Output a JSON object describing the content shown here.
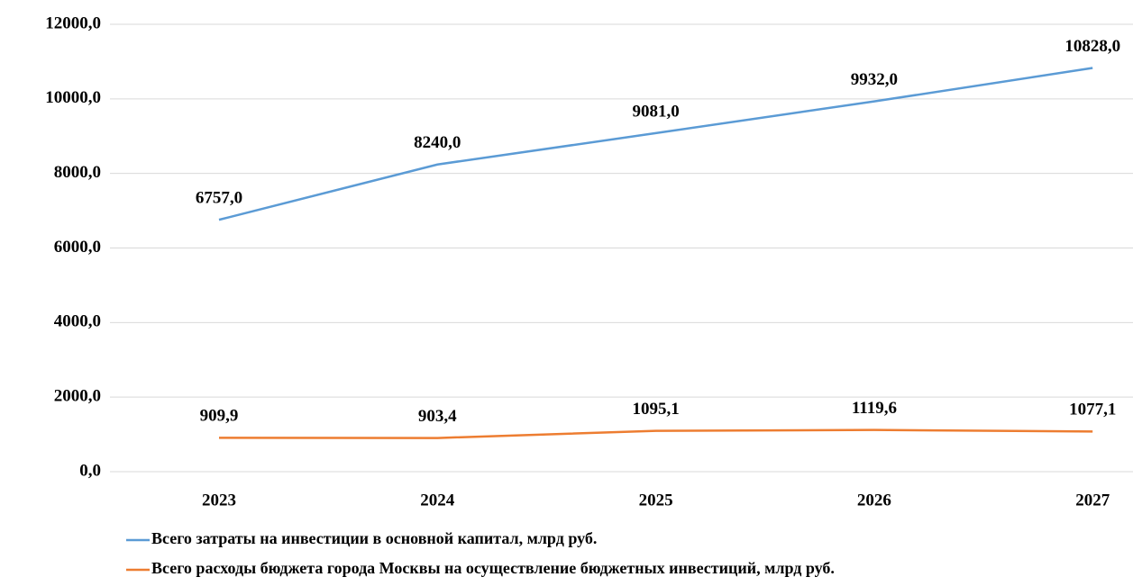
{
  "chart_data": {
    "type": "line",
    "categories": [
      "2023",
      "2024",
      "2025",
      "2026",
      "2027"
    ],
    "series": [
      {
        "name": "Всего затраты на инвестиции в основной капитал, млрд руб.",
        "color": "#5b9bd5",
        "values": [
          6757,
          8240,
          9081,
          9932,
          10828
        ],
        "value_labels": [
          "6757,0",
          "8240,0",
          "9081,0",
          "9932,0",
          "10828,0"
        ]
      },
      {
        "name": "Всего расходы бюджета города Москвы на осуществление бюджетных инвестиций, млрд руб.",
        "color": "#ed7d31",
        "values": [
          909.9,
          903.4,
          1095.1,
          1119.6,
          1077.1
        ],
        "value_labels": [
          "909,9",
          "903,4",
          "1095,1",
          "1119,6",
          "1077,1"
        ]
      }
    ],
    "ylim": [
      0,
      12000
    ],
    "yticks": [
      {
        "value": 0,
        "label": "0,0"
      },
      {
        "value": 2000,
        "label": "2000,0"
      },
      {
        "value": 4000,
        "label": "4000,0"
      },
      {
        "value": 6000,
        "label": "6000,0"
      },
      {
        "value": 8000,
        "label": "8000,0"
      },
      {
        "value": 10000,
        "label": "10000,0"
      },
      {
        "value": 12000,
        "label": "12000,0"
      }
    ],
    "grid": true
  }
}
